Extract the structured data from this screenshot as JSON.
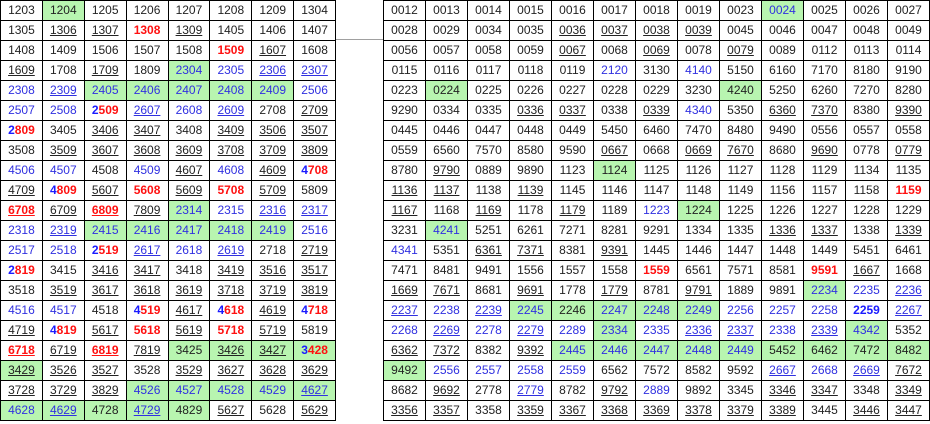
{
  "colors": {
    "highlight": "#b8f5b0",
    "red": "#ff1010",
    "blue": "#1a1aff"
  },
  "legend_flags": {
    "g": "green highlight",
    "u": "underlined",
    "r": "red bold",
    "x": "first digit blue bold, rest red bold",
    "b": "blue bold",
    "l": "blue text"
  },
  "left_table": [
    [
      "1203",
      "1204 g",
      "1205",
      "1206",
      "1207",
      "1208",
      "1209",
      "1304"
    ],
    [
      "1305",
      "1306 u",
      "1307 u",
      "1308 r",
      "1309 u",
      "1405",
      "1406",
      "1407"
    ],
    [
      "1408",
      "1409",
      "1506",
      "1507",
      "1508",
      "1509 r",
      "1607 u",
      "1608"
    ],
    [
      "1609 u",
      "1708",
      "1709 u",
      "1809",
      "2304 g l",
      "2305 l",
      "2306 u l",
      "2307 u l"
    ],
    [
      "2308 l",
      "2309 u l",
      "2405 g l",
      "2406 g l",
      "2407 g l",
      "2408 g l",
      "2409 g l",
      "2506 l"
    ],
    [
      "2507 l",
      "2508 l",
      "2509 x",
      "2607 u l",
      "2608 l",
      "2609 u l",
      "2708",
      "2709 u"
    ],
    [
      "2809 x",
      "3405",
      "3406 u",
      "3407 u",
      "3408",
      "3409 u",
      "3506 u",
      "3507 u"
    ],
    [
      "3508",
      "3509 u",
      "3607 u",
      "3608 u",
      "3609 u",
      "3708 u",
      "3709 u",
      "3809 u"
    ],
    [
      "4506 l",
      "4507 l",
      "4508",
      "4509 l",
      "4607 u",
      "4608 l",
      "4609 u",
      "4708 x"
    ],
    [
      "4709 u",
      "4809 x",
      "5607 u",
      "5608 r",
      "5609 u",
      "5708 r",
      "5709 u",
      "5809"
    ],
    [
      "6708 r u",
      "6709 u",
      "6809 r u",
      "7809 u",
      "2314 g l",
      "2315 l",
      "2316 u l",
      "2317 u l"
    ],
    [
      "2318 l",
      "2319 u l",
      "2415 g l",
      "2416 g l",
      "2417 g l",
      "2418 g l",
      "2419 g l",
      "2516 l"
    ],
    [
      "2517 l",
      "2518 l",
      "2519 x",
      "2617 u l",
      "2618 l",
      "2619 u l",
      "2718",
      "2719 u"
    ],
    [
      "2819 x",
      "3415",
      "3416 u",
      "3417 u",
      "3418",
      "3419 u",
      "3516 u",
      "3517 u"
    ],
    [
      "3518",
      "3519 u",
      "3617 u",
      "3618 u",
      "3619 u",
      "3718 u",
      "3719 u",
      "3819 u"
    ],
    [
      "4516 l",
      "4517 l",
      "4518",
      "4519 x",
      "4617 u",
      "4618 x",
      "4619 u",
      "4718 x"
    ],
    [
      "4719 u",
      "4819 x",
      "5617 u",
      "5618 r",
      "5619 u",
      "5718 r",
      "5719 u",
      "5819"
    ],
    [
      "6718 r u",
      "6719 u",
      "6819 r u",
      "7819 u",
      "3425 g",
      "3426 g u",
      "3427 g u",
      "3428 g x"
    ],
    [
      "3429 g u",
      "3526 u",
      "3527 u",
      "3528",
      "3529 u",
      "3627 u",
      "3628 u",
      "3629 u"
    ],
    [
      "3728 u",
      "3729 u",
      "3829 u",
      "4526 g l",
      "4527 g l",
      "4528 g l",
      "4529 g l",
      "4627 g u l"
    ],
    [
      "4628 g l",
      "4629 g u l",
      "4728 g",
      "4729 g u l",
      "4829 g",
      "5627 u",
      "5628",
      "5629 u"
    ]
  ],
  "right_table": [
    [
      "0012",
      "0013",
      "0014",
      "0015",
      "0016",
      "0017",
      "0018",
      "0019",
      "0023",
      "0024 g l",
      "0025",
      "0026",
      "0027"
    ],
    [
      "0028",
      "0029",
      "0034",
      "0035",
      "0036 u",
      "0037 u",
      "0038 u",
      "0039 u",
      "0045",
      "0046",
      "0047",
      "0048",
      "0049"
    ],
    [
      "0056",
      "0057",
      "0058",
      "0059",
      "0067 u",
      "0068",
      "0069 u",
      "0078",
      "0079 u",
      "0089",
      "0112",
      "0113",
      "0114"
    ],
    [
      "0115",
      "0116",
      "0117",
      "0118",
      "0119",
      "2120 l",
      "3130",
      "4140 l",
      "5150",
      "6160",
      "7170",
      "8180",
      "9190"
    ],
    [
      "0223",
      "0224 g",
      "0225",
      "0226",
      "0227",
      "0228",
      "0229",
      "3230",
      "4240 g",
      "5250",
      "6260",
      "7270",
      "8280"
    ],
    [
      "9290",
      "0334",
      "0335",
      "0336 u",
      "0337 u",
      "0338",
      "0339 u",
      "4340 l",
      "5350",
      "6360 u",
      "7370 u",
      "8380",
      "9390 u"
    ],
    [
      "0445",
      "0446",
      "0447",
      "0448",
      "0449",
      "5450",
      "6460",
      "7470",
      "8480",
      "9490",
      "0556",
      "0557",
      "0558"
    ],
    [
      "0559",
      "6560",
      "7570",
      "8580",
      "9590",
      "0667 u",
      "0668",
      "0669 u",
      "7670 u",
      "8680",
      "9690 u",
      "0778",
      "0779 u"
    ],
    [
      "8780",
      "9790 u",
      "0889",
      "9890",
      "1123",
      "1124 g",
      "1125",
      "1126",
      "1127",
      "1128",
      "1129",
      "1134",
      "1135"
    ],
    [
      "1136 u",
      "1137 u",
      "1138",
      "1139 u",
      "1145",
      "1146",
      "1147",
      "1148",
      "1149",
      "1156",
      "1157",
      "1158",
      "1159 r"
    ],
    [
      "1167 u",
      "1168",
      "1169 u",
      "1178",
      "1179 u",
      "1189",
      "1223 l",
      "1224 g",
      "1225",
      "1226",
      "1227",
      "1228",
      "1229"
    ],
    [
      "3231",
      "4241 g l",
      "5251",
      "6261",
      "7271",
      "8281",
      "9291",
      "1334",
      "1335",
      "1336 u",
      "1337 u",
      "1338",
      "1339 u"
    ],
    [
      "4341 l",
      "5351",
      "6361 u",
      "7371 u",
      "8381",
      "9391 u",
      "1445",
      "1446",
      "1447",
      "1448",
      "1449",
      "5451",
      "6461"
    ],
    [
      "7471",
      "8481",
      "9491",
      "1556",
      "1557",
      "1558",
      "1559 r",
      "6561",
      "7571",
      "8581",
      "9591 r",
      "1667 u",
      "1668"
    ],
    [
      "1669 u",
      "7671 u",
      "8681",
      "9691 u",
      "1778",
      "1779 u",
      "8781",
      "9791 u",
      "1889",
      "9891",
      "2234 g l",
      "2235 l",
      "2236 u l"
    ],
    [
      "2237 u l",
      "2238 l",
      "2239 u l",
      "2245 g l",
      "2246 g",
      "2247 g l",
      "2248 g l",
      "2249 g l",
      "2256 l",
      "2257 l",
      "2258 l",
      "2259 b",
      "2267 u l"
    ],
    [
      "2268 l",
      "2269 u l",
      "2278 l",
      "2279 u l",
      "2289 l",
      "2334 g l",
      "2335 l",
      "2336 u l",
      "2337 u l",
      "2338 l",
      "2339 u l",
      "4342 g l",
      "5352"
    ],
    [
      "6362 u",
      "7372 u",
      "8382",
      "9392 u",
      "2445 g l",
      "2446 g l",
      "2447 g l",
      "2448 g l",
      "2449 g l",
      "5452 g",
      "6462 g",
      "7472 g",
      "8482 g"
    ],
    [
      "9492 g",
      "2556 l",
      "2557 l",
      "2558 l",
      "2559 l",
      "6562",
      "7572",
      "8582",
      "9592",
      "2667 u l",
      "2668 l",
      "2669 u l",
      "7672 u"
    ],
    [
      "8682",
      "9692 u",
      "2778",
      "2779 u l",
      "8782",
      "9792 u",
      "2889 l",
      "9892",
      "3345",
      "3346 u",
      "3347 u",
      "3348",
      "3349 u"
    ],
    [
      "3356 u",
      "3357 u",
      "3358",
      "3359 u",
      "3367 u",
      "3368 u",
      "3369 u",
      "3378 u",
      "3379 u",
      "3389 u",
      "3445",
      "3446 u",
      "3447 u"
    ]
  ]
}
